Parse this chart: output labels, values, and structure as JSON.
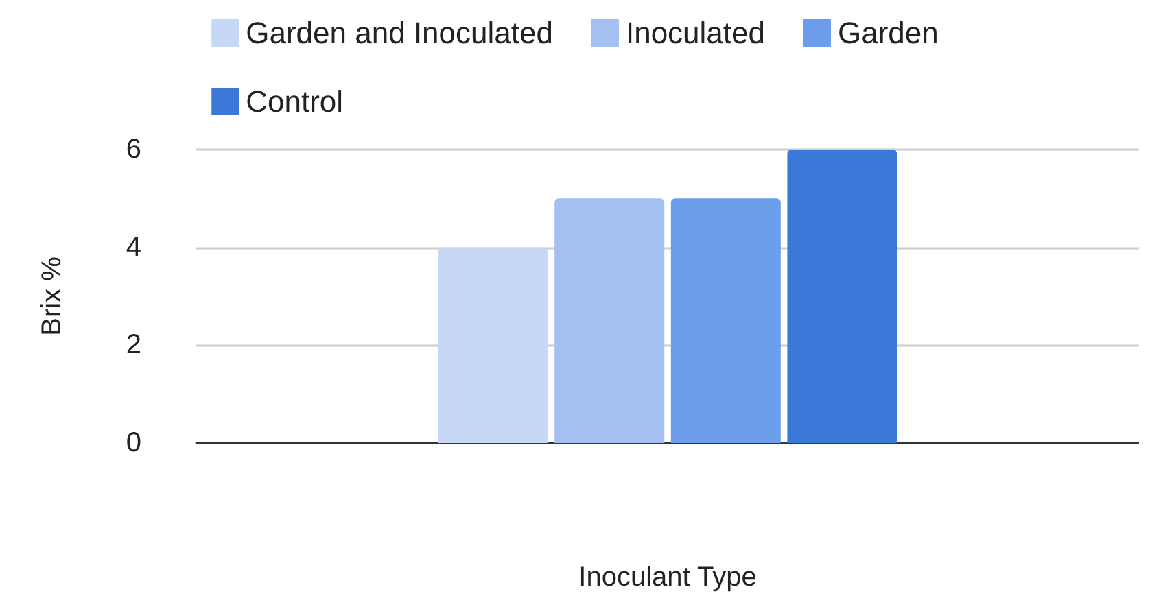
{
  "chart_data": {
    "type": "bar",
    "xlabel": "Inoculant Type",
    "ylabel": "Brix %",
    "categories": [
      null
    ],
    "series": [
      {
        "name": "Garden and Inoculated",
        "color": "#c6d8f5",
        "values": [
          4
        ]
      },
      {
        "name": "Inoculated",
        "color": "#a3c0f0",
        "values": [
          5
        ]
      },
      {
        "name": "Garden",
        "color": "#6d9eeb",
        "values": [
          5
        ]
      },
      {
        "name": "Control",
        "color": "#3c78d8",
        "values": [
          6
        ]
      }
    ],
    "ylim": [
      0,
      6
    ],
    "yticks": [
      0,
      2,
      4,
      6
    ],
    "grid": "y",
    "legend": "top"
  }
}
